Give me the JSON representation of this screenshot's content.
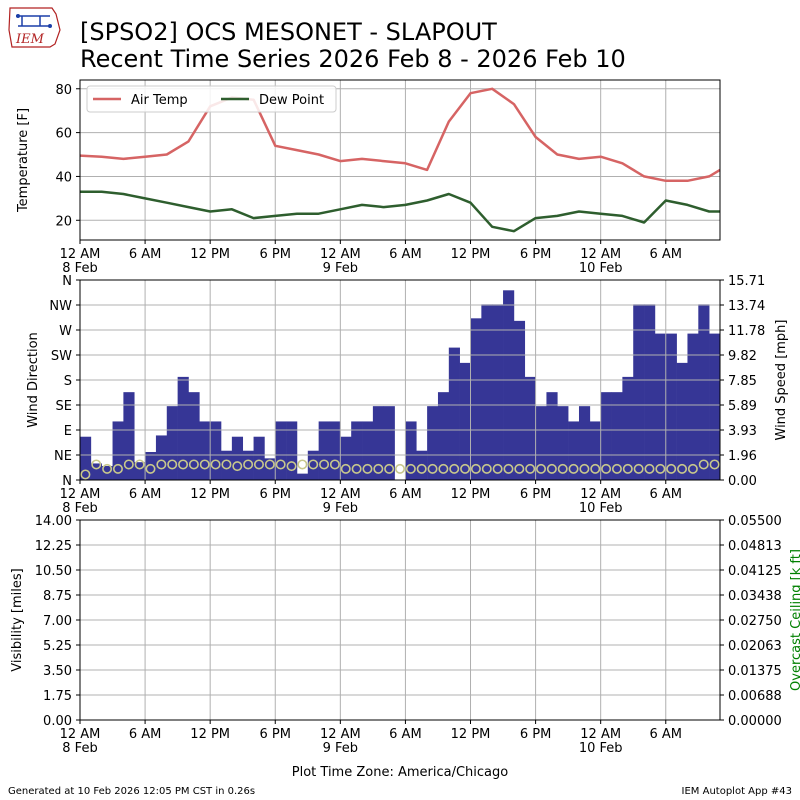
{
  "header": {
    "logo_text": "IEM",
    "title_line1": "[SPSO2] OCS MESONET - SLAPOUT",
    "title_line2": "Recent Time Series 2026 Feb 8 - 2026 Feb 10"
  },
  "footer": {
    "generated": "Generated at 10 Feb 2026 12:05 PM CST in 0.26s",
    "app": "IEM Autoplot App #43",
    "timezone": "Plot Time Zone: America/Chicago"
  },
  "colors": {
    "air_temp": "#d66464",
    "dew_point": "#2e5e2e",
    "wind_speed": "#363696",
    "wind_dir_marker": "#c8c88c",
    "ceiling_label": "#008000",
    "grid": "#b0b0b0"
  },
  "x_axis": {
    "ticks": [
      {
        "hour": 0,
        "line1": "12 AM",
        "line2": "8 Feb"
      },
      {
        "hour": 6,
        "line1": "6 AM",
        "line2": ""
      },
      {
        "hour": 12,
        "line1": "12 PM",
        "line2": ""
      },
      {
        "hour": 18,
        "line1": "6 PM",
        "line2": ""
      },
      {
        "hour": 24,
        "line1": "12 AM",
        "line2": "9 Feb"
      },
      {
        "hour": 30,
        "line1": "6 AM",
        "line2": ""
      },
      {
        "hour": 36,
        "line1": "12 PM",
        "line2": ""
      },
      {
        "hour": 42,
        "line1": "6 PM",
        "line2": ""
      },
      {
        "hour": 48,
        "line1": "12 AM",
        "line2": "10 Feb"
      },
      {
        "hour": 54,
        "line1": "6 AM",
        "line2": ""
      }
    ],
    "range_hours": [
      0,
      59
    ]
  },
  "chart_data": [
    {
      "type": "line",
      "ylabel": "Temperature [F]",
      "ylim": [
        11,
        84
      ],
      "yticks": [
        20,
        40,
        60,
        80
      ],
      "grid": true,
      "legend": "top-left",
      "x_unit": "hours since 12 AM 8 Feb",
      "series": [
        {
          "name": "Air Temp",
          "x": [
            0,
            2,
            4,
            6,
            8,
            10,
            12,
            14,
            16,
            18,
            20,
            22,
            24,
            26,
            28,
            30,
            32,
            34,
            36,
            38,
            40,
            42,
            44,
            46,
            48,
            50,
            52,
            54,
            56,
            58,
            59
          ],
          "values": [
            49.5,
            49,
            48,
            49,
            50,
            56,
            72,
            76,
            75,
            54,
            52,
            50,
            47,
            48,
            47,
            46,
            43,
            65,
            78,
            80,
            73,
            58,
            50,
            48,
            49,
            46,
            40,
            38,
            38,
            40,
            43
          ]
        },
        {
          "name": "Dew Point",
          "x": [
            0,
            2,
            4,
            6,
            8,
            10,
            12,
            14,
            16,
            18,
            20,
            22,
            24,
            26,
            28,
            30,
            32,
            34,
            36,
            38,
            40,
            42,
            44,
            46,
            48,
            50,
            52,
            54,
            56,
            58,
            59
          ],
          "values": [
            33,
            33,
            32,
            30,
            28,
            26,
            24,
            25,
            21,
            22,
            23,
            23,
            25,
            27,
            26,
            27,
            29,
            32,
            28,
            17,
            15,
            21,
            22,
            24,
            23,
            22,
            19,
            29,
            27,
            24,
            24
          ]
        }
      ]
    },
    {
      "type": "bar",
      "ylabel": "Wind Direction",
      "y2label": "Wind Speed [mph]",
      "y_left_ticks": [
        "N",
        "NE",
        "E",
        "SE",
        "S",
        "SW",
        "W",
        "NW",
        "N"
      ],
      "y_right_ticks": [
        "0.00",
        "1.96",
        "3.93",
        "5.89",
        "7.85",
        "9.82",
        "11.78",
        "13.74",
        "15.71"
      ],
      "ylim": [
        0,
        15.71
      ],
      "grid": true,
      "x_unit": "hours since 12 AM 8 Feb",
      "series": [
        {
          "name": "Wind Speed",
          "x": [
            0,
            1,
            2,
            3,
            4,
            5,
            6,
            7,
            8,
            9,
            10,
            11,
            12,
            13,
            14,
            15,
            16,
            17,
            18,
            19,
            20,
            21,
            22,
            23,
            24,
            25,
            26,
            27,
            28,
            29,
            30,
            31,
            32,
            33,
            34,
            35,
            36,
            37,
            38,
            39,
            40,
            41,
            42,
            43,
            44,
            45,
            46,
            47,
            48,
            49,
            50,
            51,
            52,
            53,
            54,
            55,
            56,
            57,
            58
          ],
          "values": [
            3.4,
            1.3,
            1.1,
            4.6,
            6.9,
            1.4,
            2.2,
            3.5,
            5.8,
            8.1,
            6.9,
            4.6,
            4.6,
            2.3,
            3.4,
            2.3,
            3.4,
            1.7,
            4.6,
            4.6,
            0.5,
            2.3,
            4.6,
            4.6,
            3.4,
            4.6,
            4.6,
            5.8,
            5.8,
            0,
            4.6,
            2.3,
            5.8,
            6.9,
            10.4,
            9.2,
            12.7,
            13.8,
            13.8,
            14.9,
            12.5,
            8.1,
            5.8,
            6.9,
            5.8,
            4.6,
            5.8,
            4.6,
            6.9,
            6.9,
            8.1,
            13.8,
            13.8,
            11.5,
            11.5,
            9.2,
            11.5,
            13.8,
            11.5
          ]
        },
        {
          "name": "Wind Direction",
          "x": [
            0,
            1,
            2,
            3,
            4,
            5,
            6,
            7,
            8,
            9,
            10,
            11,
            12,
            13,
            14,
            15,
            16,
            17,
            18,
            19,
            20,
            21,
            22,
            23,
            24,
            25,
            26,
            27,
            28,
            29,
            30,
            31,
            32,
            33,
            34,
            35,
            36,
            37,
            38,
            39,
            40,
            41,
            42,
            43,
            44,
            45,
            46,
            47,
            48,
            49,
            50,
            51,
            52,
            53,
            54,
            55,
            56,
            57,
            58
          ],
          "values_deg": [
            10,
            28,
            20,
            20,
            28,
            28,
            20,
            28,
            28,
            28,
            28,
            28,
            28,
            28,
            25,
            28,
            28,
            28,
            28,
            25,
            28,
            28,
            28,
            28,
            20,
            20,
            20,
            20,
            20,
            20,
            20,
            20,
            20,
            20,
            20,
            20,
            20,
            20,
            20,
            20,
            20,
            20,
            20,
            20,
            20,
            20,
            20,
            20,
            20,
            20,
            20,
            20,
            20,
            20,
            20,
            20,
            20,
            28,
            28
          ]
        }
      ]
    },
    {
      "type": "line",
      "ylabel": "Visibility [miles]",
      "y2label": "Overcast Ceiling [k ft]",
      "y_left_ticks": [
        "0.00",
        "1.75",
        "3.50",
        "5.25",
        "7.00",
        "8.75",
        "10.50",
        "12.25",
        "14.00"
      ],
      "y_right_ticks": [
        "0.00000",
        "0.00688",
        "0.01375",
        "0.02063",
        "0.02750",
        "0.03438",
        "0.04125",
        "0.04813",
        "0.05500"
      ],
      "ylim": [
        0,
        14
      ],
      "y2lim": [
        0,
        0.055
      ],
      "grid": true,
      "series": []
    }
  ]
}
